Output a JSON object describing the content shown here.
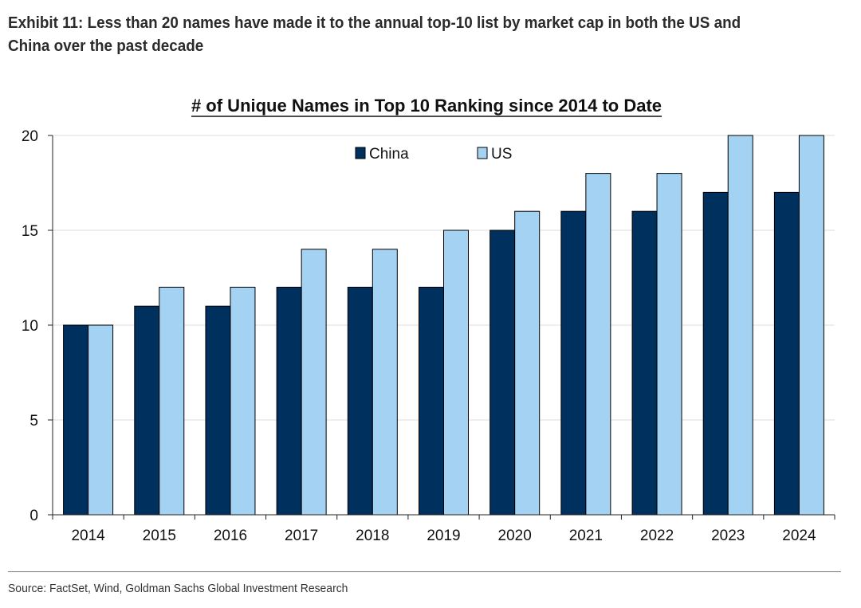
{
  "exhibit": {
    "title": "Exhibit 11: Less than 20 names have made it to the annual top-10 list by market cap in both the US and China over the past decade"
  },
  "source": {
    "text": "Source: FactSet, Wind, Goldman Sachs Global Investment Research"
  },
  "chart_data": {
    "type": "bar",
    "title": "# of Unique Names in Top 10 Ranking since 2014 to Date",
    "xlabel": "",
    "ylabel": "",
    "categories": [
      "2014",
      "2015",
      "2016",
      "2017",
      "2018",
      "2019",
      "2020",
      "2021",
      "2022",
      "2023",
      "2024"
    ],
    "series": [
      {
        "name": "China",
        "values": [
          10,
          11,
          11,
          12,
          12,
          12,
          15,
          16,
          16,
          17,
          17
        ],
        "color": "#00305e"
      },
      {
        "name": "US",
        "values": [
          10,
          12,
          12,
          14,
          14,
          15,
          16,
          18,
          18,
          20,
          20
        ],
        "color": "#a3d2f2"
      }
    ],
    "ylim": [
      0,
      20
    ],
    "yticks": [
      0,
      5,
      10,
      15,
      20
    ],
    "grid": true,
    "legend_position": "top-center",
    "bar_edge_color": "#000000"
  }
}
